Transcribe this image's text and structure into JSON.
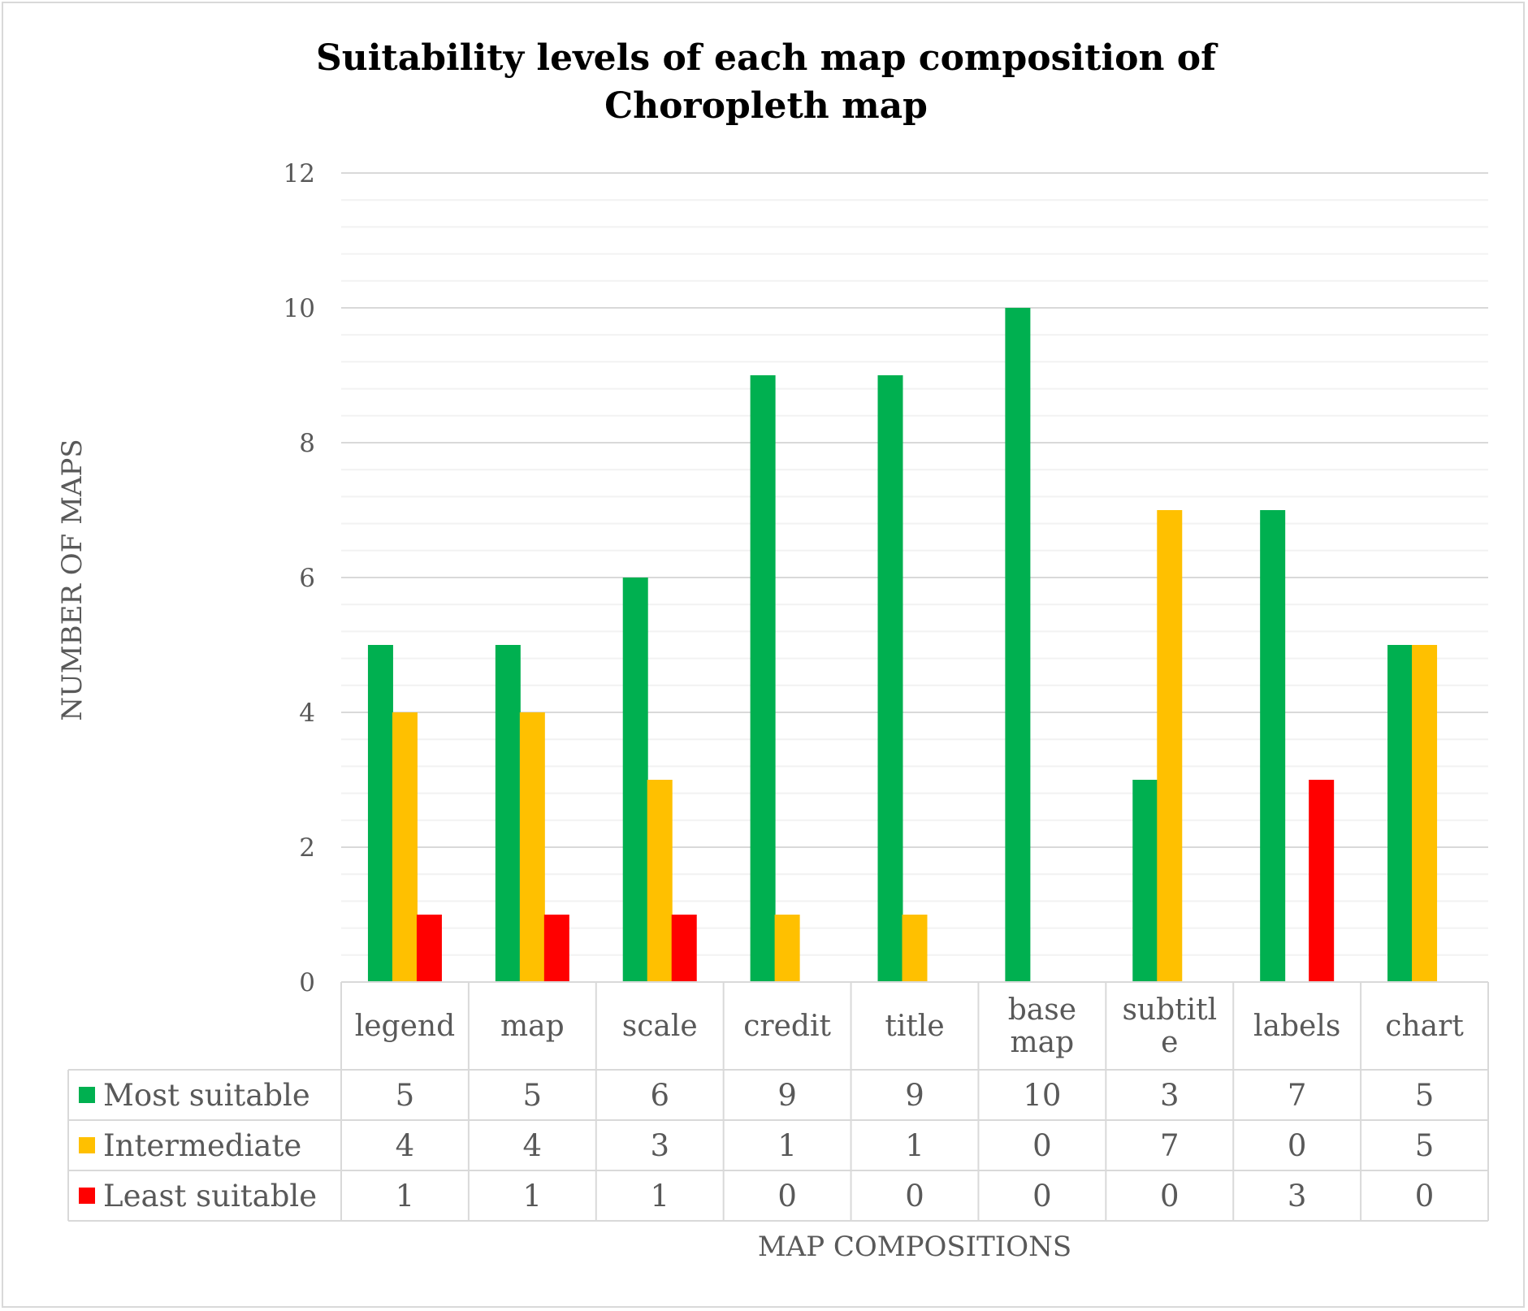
{
  "chart_data": {
    "type": "bar",
    "title_lines": [
      "Suitability levels of each map composition of",
      "Choropleth map"
    ],
    "xlabel": "MAP COMPOSITIONS",
    "ylabel": "NUMBER OF MAPS",
    "ylim": [
      0,
      12
    ],
    "yticks": [
      0,
      2,
      4,
      6,
      8,
      10,
      12
    ],
    "grid": true,
    "legend_placement": "data-table",
    "categories": [
      "legend",
      "map",
      "scale",
      "credit",
      "title",
      "base map",
      "subtitle",
      "labels",
      "chart"
    ],
    "category_label_lines": [
      [
        "legend"
      ],
      [
        "map"
      ],
      [
        "scale"
      ],
      [
        "credit"
      ],
      [
        "title"
      ],
      [
        "base",
        "map"
      ],
      [
        "subtitl",
        "e"
      ],
      [
        "labels"
      ],
      [
        "chart"
      ]
    ],
    "series": [
      {
        "name": "Most suitable",
        "color": "#00b050",
        "values": [
          5,
          5,
          6,
          9,
          9,
          10,
          3,
          7,
          5
        ]
      },
      {
        "name": "Intermediate",
        "color": "#ffc000",
        "values": [
          4,
          4,
          3,
          1,
          1,
          0,
          7,
          0,
          5
        ]
      },
      {
        "name": "Least suitable",
        "color": "#ff0000",
        "values": [
          1,
          1,
          1,
          0,
          0,
          0,
          0,
          3,
          0
        ]
      }
    ]
  }
}
